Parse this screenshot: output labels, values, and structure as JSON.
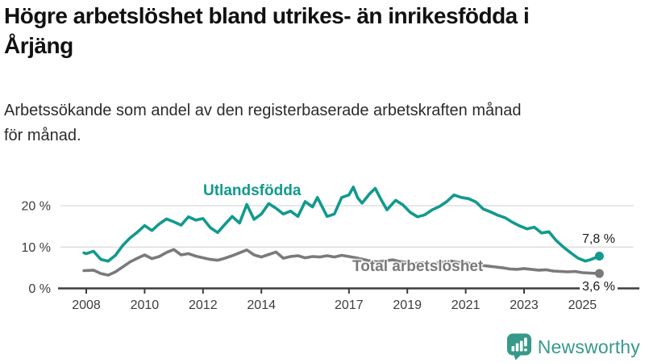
{
  "header": {
    "title_lines": [
      "Högre arbetslöshet bland utrikes- än inrikesfödda i",
      "Årjäng"
    ],
    "subtitle_lines": [
      "Arbetssökande som andel av den registerbaserade arbetskraften månad",
      "för månad."
    ]
  },
  "chart_data": {
    "type": "line",
    "unit": "%",
    "grid": "horizontal-only",
    "legend_position": "inline-labels",
    "x_axis": {
      "ticks": [
        2008,
        2010,
        2012,
        2014,
        2017,
        2019,
        2021,
        2023,
        2025
      ],
      "labels": [
        "2008",
        "2010",
        "2012",
        "2014",
        "2017",
        "2019",
        "2021",
        "2023",
        "2025"
      ],
      "range": [
        2007.9,
        2025.75
      ]
    },
    "y_axis": {
      "ticks": [
        0,
        10,
        20
      ],
      "labels": [
        "0 %",
        "10 %",
        "20 %"
      ],
      "range": [
        0,
        26
      ]
    },
    "series": [
      {
        "name": "Utlandsfödda",
        "color": "#119a8d",
        "end_value": 7.8,
        "end_label": "7,8 %",
        "points": [
          [
            2007.92,
            8.6
          ],
          [
            2008.0,
            8.4
          ],
          [
            2008.25,
            9.0
          ],
          [
            2008.5,
            7.0
          ],
          [
            2008.75,
            6.6
          ],
          [
            2009.0,
            8.0
          ],
          [
            2009.25,
            10.4
          ],
          [
            2009.5,
            12.2
          ],
          [
            2009.75,
            13.6
          ],
          [
            2010.0,
            15.2
          ],
          [
            2010.25,
            14.0
          ],
          [
            2010.5,
            15.6
          ],
          [
            2010.75,
            16.8
          ],
          [
            2011.0,
            16.1
          ],
          [
            2011.25,
            15.3
          ],
          [
            2011.5,
            17.3
          ],
          [
            2011.75,
            16.5
          ],
          [
            2012.0,
            16.9
          ],
          [
            2012.25,
            14.7
          ],
          [
            2012.5,
            13.5
          ],
          [
            2012.75,
            15.5
          ],
          [
            2013.0,
            17.4
          ],
          [
            2013.25,
            15.8
          ],
          [
            2013.5,
            20.3
          ],
          [
            2013.75,
            16.7
          ],
          [
            2014.0,
            18.0
          ],
          [
            2014.25,
            20.5
          ],
          [
            2014.5,
            19.4
          ],
          [
            2014.75,
            18.0
          ],
          [
            2015.0,
            18.7
          ],
          [
            2015.25,
            17.4
          ],
          [
            2015.5,
            21.0
          ],
          [
            2015.75,
            19.7
          ],
          [
            2015.92,
            22.0
          ],
          [
            2016.25,
            17.4
          ],
          [
            2016.5,
            18.0
          ],
          [
            2016.75,
            22.0
          ],
          [
            2017.0,
            22.6
          ],
          [
            2017.15,
            24.5
          ],
          [
            2017.3,
            21.9
          ],
          [
            2017.45,
            20.6
          ],
          [
            2017.7,
            22.8
          ],
          [
            2017.9,
            24.2
          ],
          [
            2018.1,
            21.5
          ],
          [
            2018.3,
            19.0
          ],
          [
            2018.6,
            21.3
          ],
          [
            2018.85,
            20.2
          ],
          [
            2019.1,
            18.4
          ],
          [
            2019.35,
            17.3
          ],
          [
            2019.6,
            17.8
          ],
          [
            2019.85,
            19.0
          ],
          [
            2020.1,
            19.8
          ],
          [
            2020.35,
            21.0
          ],
          [
            2020.6,
            22.6
          ],
          [
            2020.85,
            22.0
          ],
          [
            2021.1,
            21.7
          ],
          [
            2021.35,
            20.9
          ],
          [
            2021.6,
            19.2
          ],
          [
            2021.85,
            18.5
          ],
          [
            2022.1,
            17.7
          ],
          [
            2022.35,
            17.1
          ],
          [
            2022.6,
            16.0
          ],
          [
            2022.85,
            15.1
          ],
          [
            2023.1,
            14.4
          ],
          [
            2023.35,
            14.8
          ],
          [
            2023.6,
            13.4
          ],
          [
            2023.85,
            13.7
          ],
          [
            2024.1,
            11.6
          ],
          [
            2024.35,
            10.0
          ],
          [
            2024.6,
            8.6
          ],
          [
            2024.85,
            7.3
          ],
          [
            2025.1,
            6.6
          ],
          [
            2025.3,
            7.0
          ],
          [
            2025.58,
            7.8
          ]
        ]
      },
      {
        "name": "Total arbetslöshet",
        "color": "#7a7a7a",
        "end_value": 3.6,
        "end_label": "3,6 %",
        "points": [
          [
            2007.92,
            4.3
          ],
          [
            2008.25,
            4.4
          ],
          [
            2008.5,
            3.6
          ],
          [
            2008.75,
            3.2
          ],
          [
            2009.0,
            4.0
          ],
          [
            2009.25,
            5.2
          ],
          [
            2009.5,
            6.4
          ],
          [
            2009.75,
            7.3
          ],
          [
            2010.0,
            8.1
          ],
          [
            2010.25,
            7.2
          ],
          [
            2010.5,
            7.7
          ],
          [
            2010.75,
            8.7
          ],
          [
            2011.0,
            9.4
          ],
          [
            2011.25,
            8.1
          ],
          [
            2011.5,
            8.4
          ],
          [
            2011.75,
            7.8
          ],
          [
            2012.0,
            7.4
          ],
          [
            2012.25,
            7.0
          ],
          [
            2012.5,
            6.8
          ],
          [
            2012.75,
            7.3
          ],
          [
            2013.0,
            7.9
          ],
          [
            2013.25,
            8.6
          ],
          [
            2013.5,
            9.3
          ],
          [
            2013.75,
            8.1
          ],
          [
            2014.0,
            7.6
          ],
          [
            2014.25,
            8.2
          ],
          [
            2014.5,
            8.8
          ],
          [
            2014.75,
            7.3
          ],
          [
            2015.0,
            7.7
          ],
          [
            2015.25,
            7.9
          ],
          [
            2015.5,
            7.4
          ],
          [
            2015.75,
            7.7
          ],
          [
            2016.0,
            7.6
          ],
          [
            2016.25,
            7.9
          ],
          [
            2016.5,
            7.6
          ],
          [
            2016.75,
            8.0
          ],
          [
            2017.0,
            7.7
          ],
          [
            2017.25,
            7.4
          ],
          [
            2017.5,
            7.0
          ],
          [
            2017.75,
            6.6
          ],
          [
            2018.0,
            6.4
          ],
          [
            2018.25,
            6.7
          ],
          [
            2018.5,
            6.9
          ],
          [
            2018.75,
            6.5
          ],
          [
            2019.0,
            6.3
          ],
          [
            2019.25,
            6.0
          ],
          [
            2019.5,
            6.2
          ],
          [
            2019.75,
            6.0
          ],
          [
            2020.0,
            6.1
          ],
          [
            2020.25,
            6.4
          ],
          [
            2020.5,
            6.6
          ],
          [
            2020.75,
            6.3
          ],
          [
            2021.0,
            6.2
          ],
          [
            2021.25,
            5.9
          ],
          [
            2021.5,
            5.6
          ],
          [
            2021.75,
            5.4
          ],
          [
            2022.0,
            5.2
          ],
          [
            2022.25,
            5.0
          ],
          [
            2022.5,
            4.7
          ],
          [
            2022.75,
            4.6
          ],
          [
            2023.0,
            4.8
          ],
          [
            2023.25,
            4.6
          ],
          [
            2023.5,
            4.4
          ],
          [
            2023.75,
            4.5
          ],
          [
            2024.0,
            4.2
          ],
          [
            2024.25,
            4.1
          ],
          [
            2024.5,
            4.0
          ],
          [
            2024.75,
            4.1
          ],
          [
            2025.0,
            3.8
          ],
          [
            2025.25,
            3.7
          ],
          [
            2025.58,
            3.6
          ]
        ]
      }
    ]
  },
  "footer": {
    "brand": "Newsworthy",
    "brand_color": "#37998a"
  },
  "colors": {
    "accent_teal": "#119a8d",
    "series_gray": "#7a7a7a",
    "gridline": "#dadada",
    "axis": "#3d3d3d",
    "text": "#111111"
  }
}
